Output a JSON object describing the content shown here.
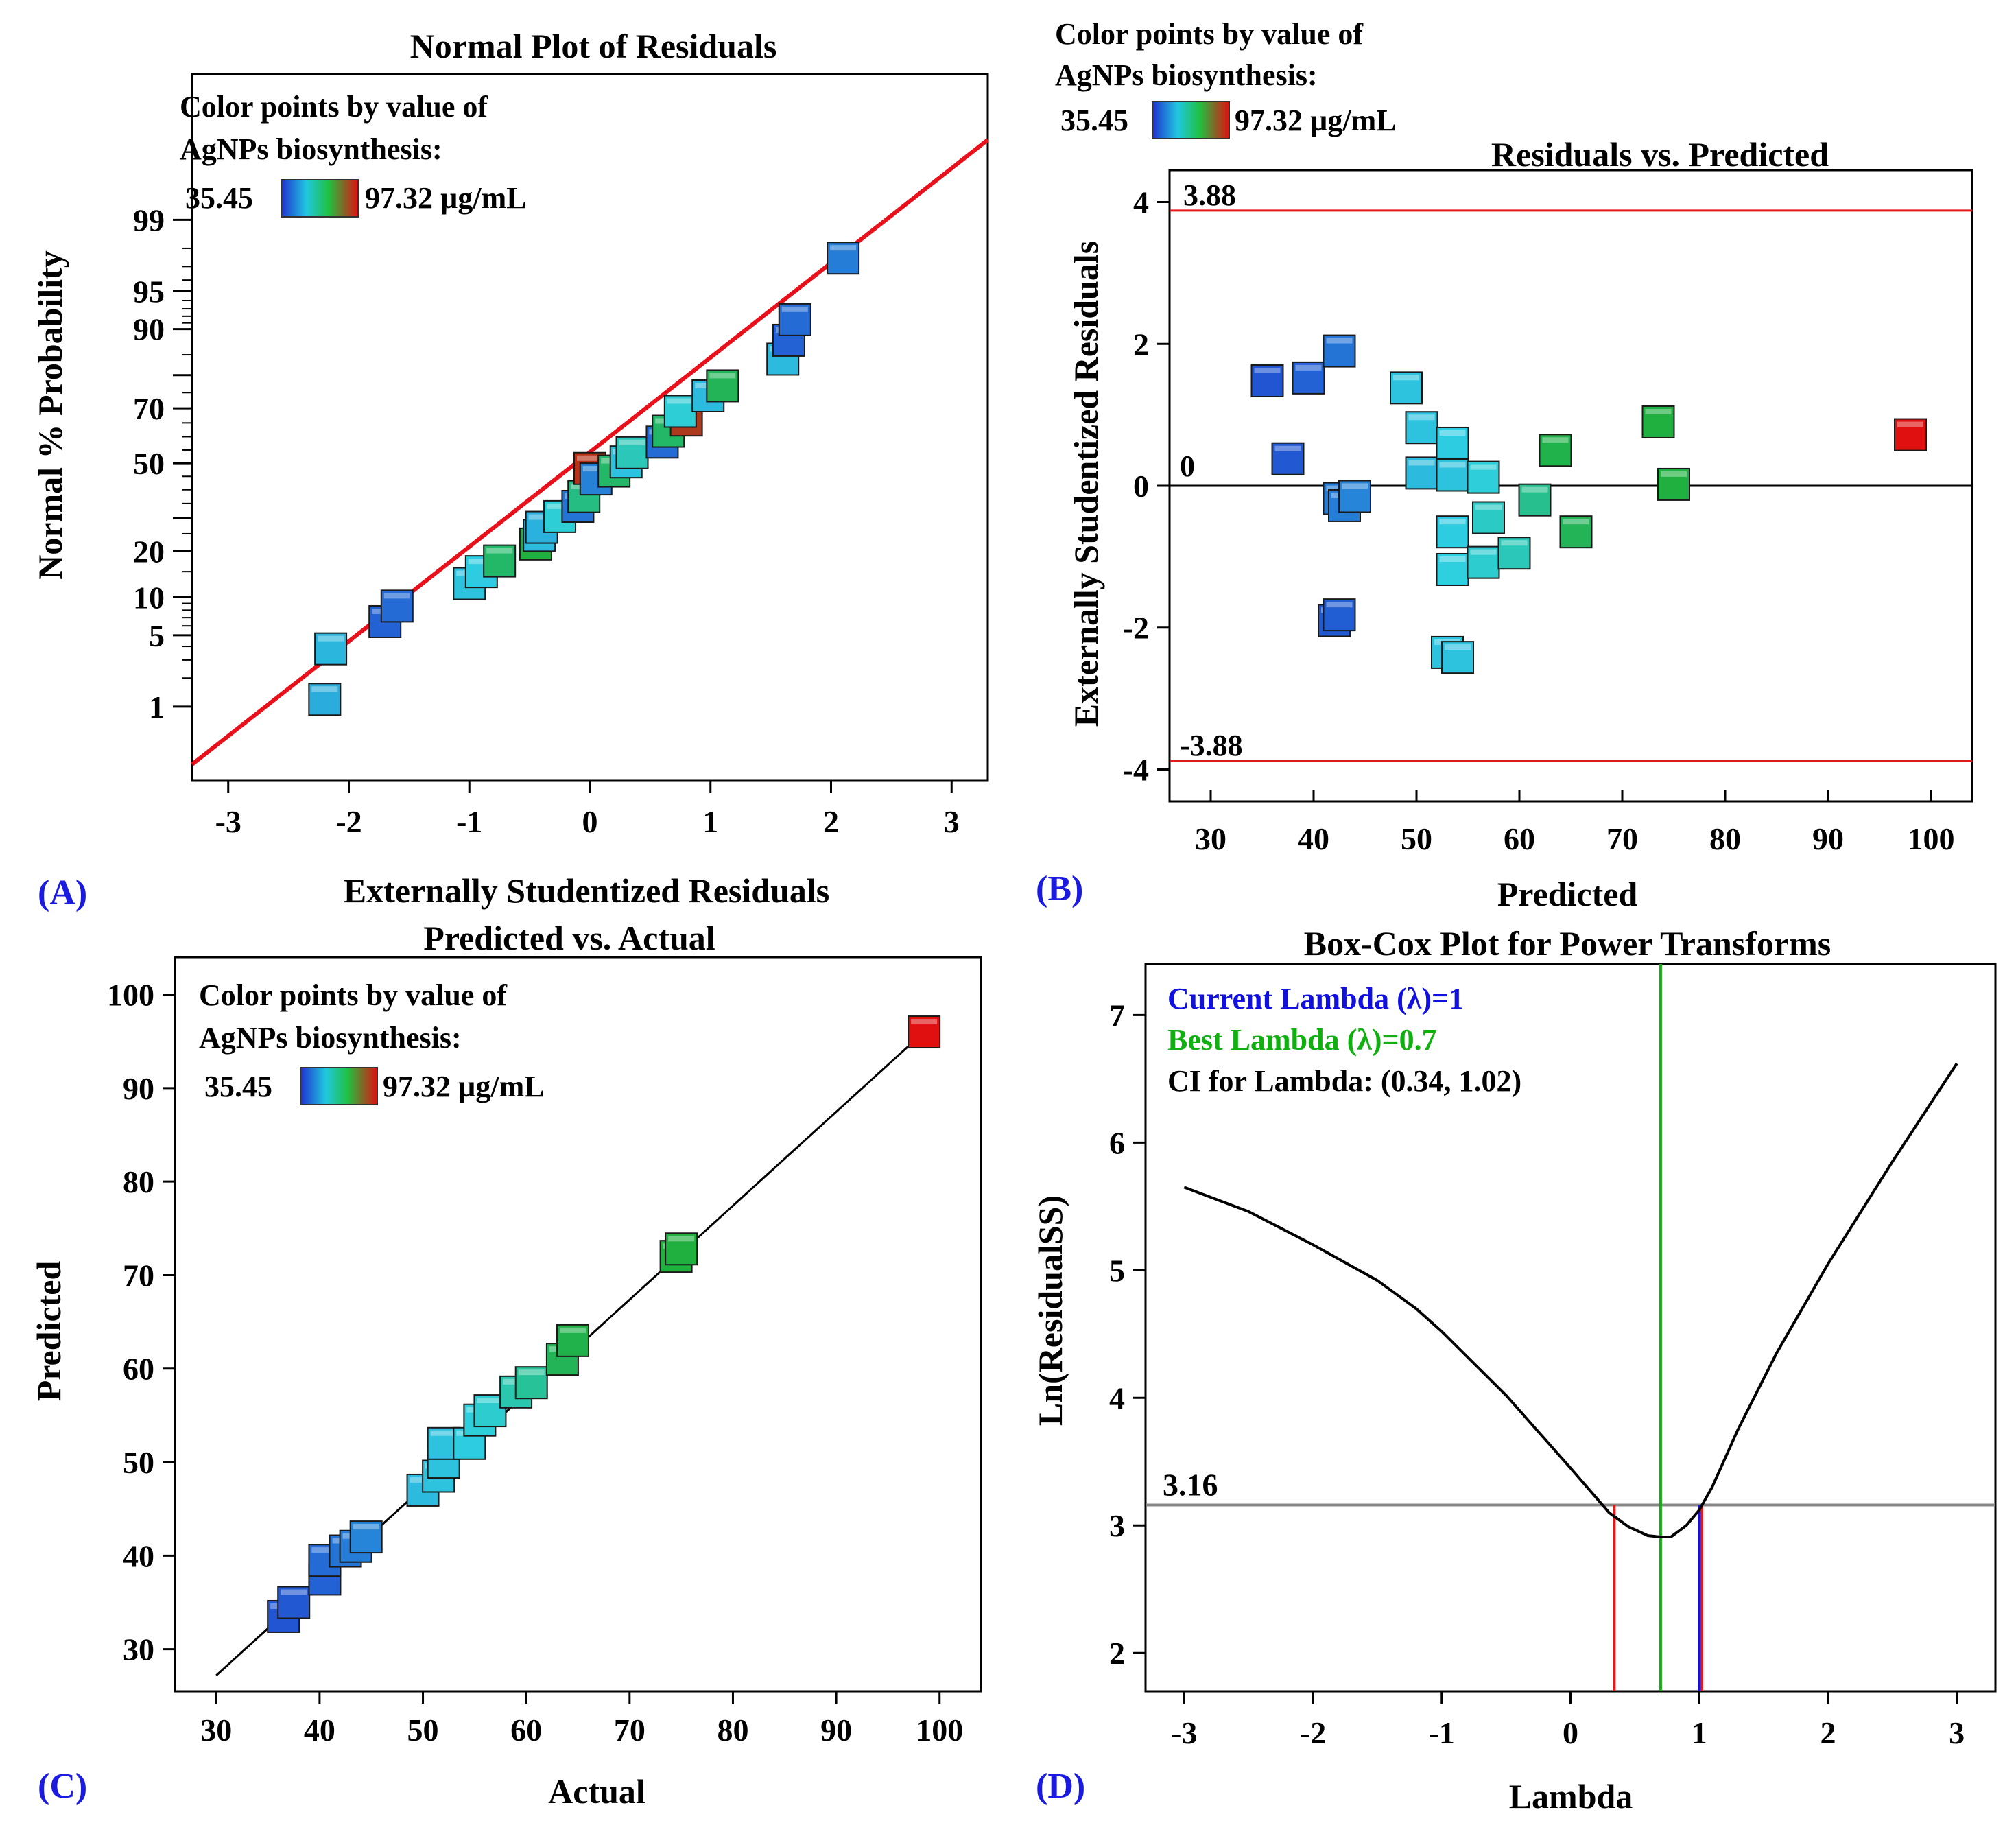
{
  "colors": {
    "low": "#1f3fd0",
    "mid_low": "#2ed0e0",
    "mid": "#20b040",
    "high": "#e01010",
    "fit_line": "#e8101a",
    "limit_line": "#e01a1a",
    "ci_line": "#e01a1a",
    "current_line": "#1010e0",
    "best_line": "#10b010",
    "min_line": "#888888"
  },
  "chart_data": [
    {
      "panel": "A",
      "panel_label": "(A)",
      "type": "scatter",
      "title": "Normal Plot of Residuals",
      "xlabel": "Externally Studentized Residuals",
      "ylabel": "Normal % Probability",
      "xlim": [
        -3.3,
        3.3
      ],
      "x_ticks": [
        -3,
        -2,
        -1,
        0,
        1,
        2,
        3
      ],
      "x_tick_labels": [
        "-3",
        "-2",
        "-1",
        "0",
        "1",
        "2",
        "3"
      ],
      "y_ticks": [
        1,
        5,
        10,
        20,
        30,
        50,
        70,
        80,
        90,
        95,
        99
      ],
      "y_tick_labels": [
        "1",
        "5",
        "10",
        "20",
        "",
        "50",
        "70",
        "",
        "90",
        "95",
        "99"
      ],
      "legend": {
        "line1": "Color points by value of",
        "line2": "AgNPs biosynthesis:",
        "min": "35.45",
        "max": "97.32 µg/mL"
      },
      "fit_line": {
        "x": [
          -3.3,
          3.3
        ],
        "y": [
          0.2,
          99.9
        ]
      },
      "points": [
        {
          "x": -2.2,
          "y": 1.2,
          "c": 0.25
        },
        {
          "x": -2.15,
          "y": 3.8,
          "c": 0.27
        },
        {
          "x": -1.7,
          "y": 6.5,
          "c": 0.08
        },
        {
          "x": -1.6,
          "y": 8.6,
          "c": 0.1
        },
        {
          "x": -1.0,
          "y": 12.5,
          "c": 0.3
        },
        {
          "x": -0.9,
          "y": 15.0,
          "c": 0.32
        },
        {
          "x": -0.75,
          "y": 17.5,
          "c": 0.55
        },
        {
          "x": -0.45,
          "y": 22.0,
          "c": 0.62
        },
        {
          "x": -0.42,
          "y": 24.5,
          "c": 0.28
        },
        {
          "x": -0.4,
          "y": 27.0,
          "c": 0.26
        },
        {
          "x": -0.25,
          "y": 30.5,
          "c": 0.35
        },
        {
          "x": -0.1,
          "y": 34.0,
          "c": 0.12
        },
        {
          "x": -0.05,
          "y": 37.5,
          "c": 0.5
        },
        {
          "x": 0.0,
          "y": 48.0,
          "c": 0.92
        },
        {
          "x": 0.05,
          "y": 44.0,
          "c": 0.15
        },
        {
          "x": 0.2,
          "y": 47.0,
          "c": 0.55
        },
        {
          "x": 0.3,
          "y": 50.5,
          "c": 0.3
        },
        {
          "x": 0.35,
          "y": 54.0,
          "c": 0.4
        },
        {
          "x": 0.6,
          "y": 58.0,
          "c": 0.1
        },
        {
          "x": 0.65,
          "y": 62.0,
          "c": 0.55
        },
        {
          "x": 0.8,
          "y": 66.0,
          "c": 0.9
        },
        {
          "x": 0.75,
          "y": 69.0,
          "c": 0.35
        },
        {
          "x": 0.98,
          "y": 74.0,
          "c": 0.28
        },
        {
          "x": 1.1,
          "y": 77.0,
          "c": 0.58
        },
        {
          "x": 1.6,
          "y": 84.0,
          "c": 0.28
        },
        {
          "x": 1.65,
          "y": 88.0,
          "c": 0.08
        },
        {
          "x": 1.7,
          "y": 91.5,
          "c": 0.1
        },
        {
          "x": 2.1,
          "y": 97.5,
          "c": 0.14
        }
      ]
    },
    {
      "panel": "B",
      "panel_label": "(B)",
      "type": "scatter",
      "title": "Residuals vs. Predicted",
      "xlabel": "Predicted",
      "ylabel": "Externally Studentized Residuals",
      "xlim": [
        26,
        104
      ],
      "ylim": [
        -4.45,
        4.45
      ],
      "x_ticks": [
        30,
        40,
        50,
        60,
        70,
        80,
        90,
        100
      ],
      "x_tick_labels": [
        "30",
        "40",
        "50",
        "60",
        "70",
        "80",
        "90",
        "100"
      ],
      "y_ticks": [
        -4,
        -2,
        0,
        2,
        4
      ],
      "y_tick_labels": [
        "-4",
        "-2",
        "0",
        "2",
        "4"
      ],
      "legend": {
        "line1": "Color points by value of",
        "line2": "AgNPs biosynthesis:",
        "min": "35.45",
        "max": "97.32 µg/mL"
      },
      "upper_limit": 3.88,
      "upper_limit_label": "3.88",
      "lower_limit": -3.88,
      "lower_limit_label": "-3.88",
      "zero_label": "0",
      "points": [
        {
          "x": 35.5,
          "y": 1.48,
          "c": 0.05
        },
        {
          "x": 37.5,
          "y": 0.38,
          "c": 0.06
        },
        {
          "x": 39.5,
          "y": 1.52,
          "c": 0.08
        },
        {
          "x": 42.5,
          "y": 1.9,
          "c": 0.12
        },
        {
          "x": 42.5,
          "y": -0.18,
          "c": 0.14
        },
        {
          "x": 43.0,
          "y": -0.28,
          "c": 0.14
        },
        {
          "x": 44.0,
          "y": -0.15,
          "c": 0.16
        },
        {
          "x": 42.0,
          "y": -1.9,
          "c": 0.06
        },
        {
          "x": 42.5,
          "y": -1.82,
          "c": 0.07
        },
        {
          "x": 49.0,
          "y": 1.38,
          "c": 0.3
        },
        {
          "x": 50.5,
          "y": 0.82,
          "c": 0.3
        },
        {
          "x": 50.5,
          "y": 0.18,
          "c": 0.28
        },
        {
          "x": 53.5,
          "y": 0.6,
          "c": 0.32
        },
        {
          "x": 53.5,
          "y": 0.15,
          "c": 0.3
        },
        {
          "x": 56.5,
          "y": 0.12,
          "c": 0.34
        },
        {
          "x": 53.5,
          "y": -0.65,
          "c": 0.32
        },
        {
          "x": 53.0,
          "y": -2.35,
          "c": 0.3
        },
        {
          "x": 54.0,
          "y": -2.42,
          "c": 0.3
        },
        {
          "x": 53.5,
          "y": -1.18,
          "c": 0.33
        },
        {
          "x": 56.5,
          "y": -1.08,
          "c": 0.36
        },
        {
          "x": 57.0,
          "y": -0.45,
          "c": 0.38
        },
        {
          "x": 59.5,
          "y": -0.95,
          "c": 0.4
        },
        {
          "x": 61.5,
          "y": -0.2,
          "c": 0.48
        },
        {
          "x": 63.5,
          "y": 0.5,
          "c": 0.6
        },
        {
          "x": 65.5,
          "y": -0.65,
          "c": 0.58
        },
        {
          "x": 73.5,
          "y": 0.9,
          "c": 0.62
        },
        {
          "x": 75.0,
          "y": 0.02,
          "c": 0.62
        },
        {
          "x": 98.0,
          "y": 0.72,
          "c": 1.0
        }
      ]
    },
    {
      "panel": "C",
      "panel_label": "(C)",
      "type": "scatter",
      "title": "Predicted vs. Actual",
      "xlabel": "Actual",
      "ylabel": "Predicted",
      "xlim": [
        26,
        104
      ],
      "ylim": [
        25.5,
        104
      ],
      "x_ticks": [
        30,
        40,
        50,
        60,
        70,
        80,
        90,
        100
      ],
      "x_tick_labels": [
        "30",
        "40",
        "50",
        "60",
        "70",
        "80",
        "90",
        "100"
      ],
      "y_ticks": [
        30,
        40,
        50,
        60,
        70,
        80,
        90,
        100
      ],
      "y_tick_labels": [
        "30",
        "40",
        "50",
        "60",
        "70",
        "80",
        "90",
        "100"
      ],
      "legend": {
        "line1": "Color points by value of",
        "line2": "AgNPs biosynthesis:",
        "min": "35.45",
        "max": "97.32 µg/mL"
      },
      "fit_line": {
        "x": [
          30,
          98.5
        ],
        "y": [
          27.2,
          96
        ]
      },
      "points": [
        {
          "x": 36.5,
          "y": 33.5,
          "c": 0.05
        },
        {
          "x": 37.5,
          "y": 35.0,
          "c": 0.06
        },
        {
          "x": 40.5,
          "y": 37.5,
          "c": 0.08
        },
        {
          "x": 40.5,
          "y": 39.5,
          "c": 0.1
        },
        {
          "x": 42.5,
          "y": 40.5,
          "c": 0.12
        },
        {
          "x": 43.5,
          "y": 41.0,
          "c": 0.14
        },
        {
          "x": 44.5,
          "y": 42.0,
          "c": 0.16
        },
        {
          "x": 50.0,
          "y": 47.0,
          "c": 0.28
        },
        {
          "x": 51.5,
          "y": 48.5,
          "c": 0.3
        },
        {
          "x": 52.0,
          "y": 50.0,
          "c": 0.3
        },
        {
          "x": 52.0,
          "y": 52.0,
          "c": 0.3
        },
        {
          "x": 54.5,
          "y": 52.0,
          "c": 0.32
        },
        {
          "x": 55.5,
          "y": 54.5,
          "c": 0.34
        },
        {
          "x": 56.5,
          "y": 55.5,
          "c": 0.36
        },
        {
          "x": 59.0,
          "y": 57.5,
          "c": 0.42
        },
        {
          "x": 60.5,
          "y": 58.5,
          "c": 0.46
        },
        {
          "x": 63.5,
          "y": 61.0,
          "c": 0.58
        },
        {
          "x": 64.5,
          "y": 63.0,
          "c": 0.6
        },
        {
          "x": 74.5,
          "y": 72.0,
          "c": 0.62
        },
        {
          "x": 75.0,
          "y": 72.8,
          "c": 0.62
        },
        {
          "x": 98.5,
          "y": 96.0,
          "c": 1.0
        }
      ]
    },
    {
      "panel": "D",
      "panel_label": "(D)",
      "type": "line",
      "title": "Box-Cox Plot for Power Transforms",
      "xlabel": "Lambda",
      "ylabel": "Ln(ResidualSS)",
      "xlim": [
        -3.3,
        3.3
      ],
      "ylim": [
        1.7,
        7.4
      ],
      "x_ticks": [
        -3,
        -2,
        -1,
        0,
        1,
        2,
        3
      ],
      "x_tick_labels": [
        "-3",
        "-2",
        "-1",
        "0",
        "1",
        "2",
        "3"
      ],
      "y_ticks": [
        2,
        3,
        4,
        5,
        6,
        7
      ],
      "y_tick_labels": [
        "2",
        "3",
        "4",
        "5",
        "6",
        "7"
      ],
      "current_lambda_label": "Current Lambda (λ)=1",
      "best_lambda_label": "Best Lambda (λ)=0.7",
      "ci_label": "CI for Lambda: (0.34, 1.02)",
      "current_lambda": 1.0,
      "best_lambda": 0.7,
      "ci_low": 0.34,
      "ci_high": 1.02,
      "min_line_value": 3.16,
      "min_line_label": "3.16",
      "x": [
        -3.0,
        -2.5,
        -2.0,
        -1.5,
        -1.2,
        -1.0,
        -0.5,
        0.0,
        0.3,
        0.45,
        0.6,
        0.7,
        0.78,
        0.9,
        1.0,
        1.1,
        1.3,
        1.6,
        2.0,
        2.5,
        3.0
      ],
      "y": [
        5.65,
        5.46,
        5.2,
        4.92,
        4.7,
        4.52,
        4.02,
        3.45,
        3.1,
        2.99,
        2.92,
        2.91,
        2.91,
        3.0,
        3.12,
        3.3,
        3.75,
        4.35,
        5.05,
        5.85,
        6.62
      ]
    }
  ]
}
